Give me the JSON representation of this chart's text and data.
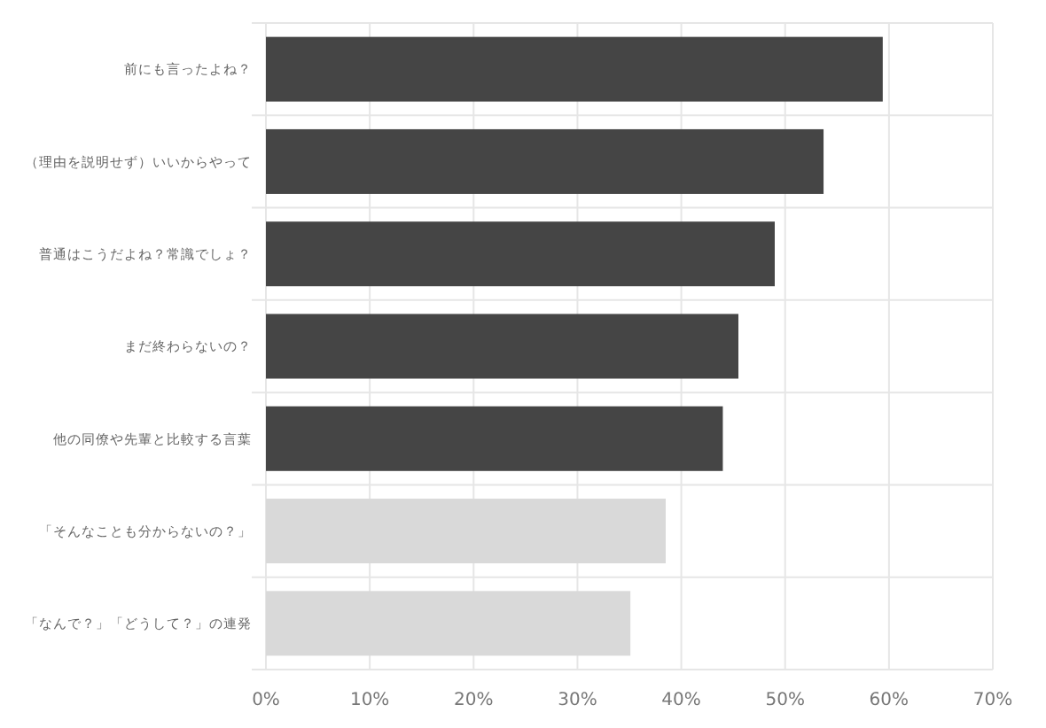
{
  "chart_data": {
    "type": "bar",
    "orientation": "horizontal",
    "categories": [
      "前にも言ったよね？",
      "（理由を説明せず）いいからやって",
      "普通はこうだよね？常識でしょ？",
      "まだ終わらないの？",
      "他の同僚や先輩と比較する言葉",
      "「そんなことも分からないの？」",
      "「なんで？」「どうして？」の連発"
    ],
    "values": [
      59.4,
      53.7,
      49.0,
      45.5,
      44.0,
      38.5,
      35.1
    ],
    "colors": [
      "#454545",
      "#454545",
      "#454545",
      "#454545",
      "#454545",
      "#d9d9d9",
      "#d9d9d9"
    ],
    "xlim": [
      0,
      70
    ],
    "xticks": [
      {
        "value": 0,
        "label": "0%"
      },
      {
        "value": 10,
        "label": "10%"
      },
      {
        "value": 20,
        "label": "20%"
      },
      {
        "value": 30,
        "label": "30%"
      },
      {
        "value": 40,
        "label": "40%"
      },
      {
        "value": 50,
        "label": "50%"
      },
      {
        "value": 60,
        "label": "60%"
      },
      {
        "value": 70,
        "label": "70%"
      }
    ],
    "grid": true
  }
}
